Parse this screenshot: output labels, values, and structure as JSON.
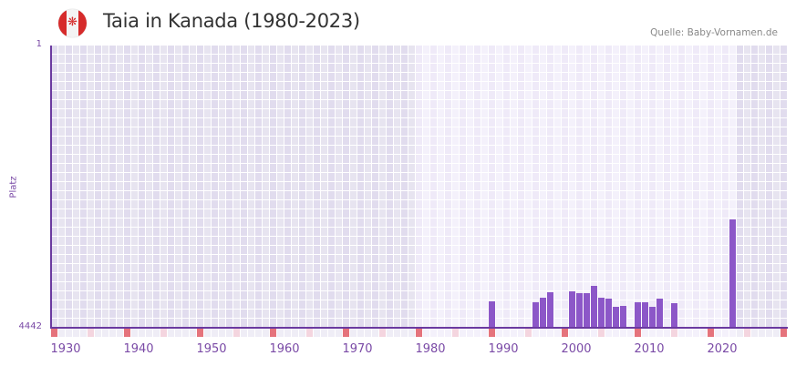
{
  "header": {
    "title": "Taia in Kanada (1980-2023)",
    "flag_icon": "canada-flag-icon",
    "source": "Quelle: Baby-Vornamen.de"
  },
  "axis": {
    "y_top": "1",
    "y_bottom": "4442",
    "y_label": "Platz",
    "x_ticks": [
      "1930",
      "1940",
      "1950",
      "1960",
      "1970",
      "1980",
      "1990",
      "2000",
      "2010",
      "2020"
    ]
  },
  "colors": {
    "bar": "#8c57c8",
    "axis": "#6b3aa0",
    "marker_decade": "#e5737c",
    "marker_half": "#f4d5df",
    "band_dark_a": "#e1dcee",
    "band_dark_b": "#e7e4f0",
    "band_light_a": "#efeaf8",
    "band_light_b": "#f4f1fb"
  },
  "chart_data": {
    "type": "bar",
    "title": "Taia in Kanada (1980-2023)",
    "xlabel": "",
    "ylabel": "Platz",
    "y_axis": {
      "top_label": 1,
      "bottom_label": 4442,
      "inverted": true,
      "note": "rank scale; taller bar = better rank"
    },
    "x_range": [
      1928,
      2028
    ],
    "highlight_range": [
      1978,
      2021
    ],
    "grid": true,
    "x": [
      1988,
      1994,
      1995,
      1996,
      1999,
      2000,
      2001,
      2002,
      2003,
      2004,
      2005,
      2006,
      2008,
      2009,
      2010,
      2011,
      2013,
      2021
    ],
    "bar_height_fraction": [
      0.094,
      0.09,
      0.106,
      0.126,
      0.129,
      0.123,
      0.123,
      0.148,
      0.106,
      0.103,
      0.074,
      0.077,
      0.09,
      0.09,
      0.074,
      0.103,
      0.087,
      0.384
    ],
    "values_rank_estimate": [
      4025,
      4042,
      3972,
      3883,
      3870,
      3896,
      3896,
      3786,
      3972,
      3985,
      4113,
      4100,
      4042,
      4042,
      4113,
      3985,
      4055,
      2737
    ]
  }
}
